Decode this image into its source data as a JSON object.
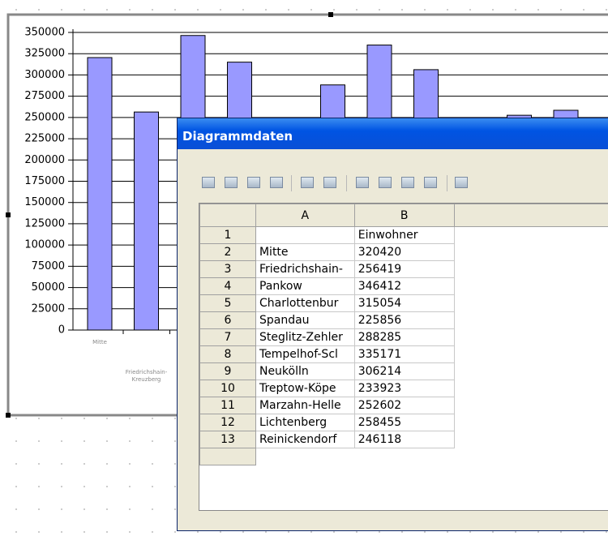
{
  "chart": {
    "type": "bar",
    "ylim": [
      0,
      350000
    ],
    "yticks": [
      0,
      25000,
      50000,
      75000,
      100000,
      125000,
      150000,
      175000,
      200000,
      225000,
      250000,
      275000,
      300000,
      325000,
      350000
    ],
    "color": "#9999ff",
    "categories": [
      "Mitte",
      "Friedrichshain-Kreuzberg"
    ]
  },
  "dialog": {
    "title": "Diagrammdaten",
    "table": {
      "column_headers": [
        "A",
        "B"
      ],
      "header_row": {
        "number": 1,
        "b": "Einwohner"
      },
      "rows": [
        {
          "number": 2,
          "name": "Mitte",
          "value": 320420
        },
        {
          "number": 3,
          "name": "Friedrichshain-",
          "value": 256419
        },
        {
          "number": 4,
          "name": "Pankow",
          "value": 346412
        },
        {
          "number": 5,
          "name": "Charlottenbur",
          "value": 315054
        },
        {
          "number": 6,
          "name": "Spandau",
          "value": 225856
        },
        {
          "number": 7,
          "name": "Steglitz-Zehler",
          "value": 288285
        },
        {
          "number": 8,
          "name": "Tempelhof-Scl",
          "value": 335171
        },
        {
          "number": 9,
          "name": "Neukölln",
          "value": 306214
        },
        {
          "number": 10,
          "name": "Treptow-Köpe",
          "value": 233923
        },
        {
          "number": 11,
          "name": "Marzahn-Helle",
          "value": 252602
        },
        {
          "number": 12,
          "name": "Lichtenberg",
          "value": 258455
        },
        {
          "number": 13,
          "name": "Reinickendorf",
          "value": 246118
        }
      ]
    }
  }
}
